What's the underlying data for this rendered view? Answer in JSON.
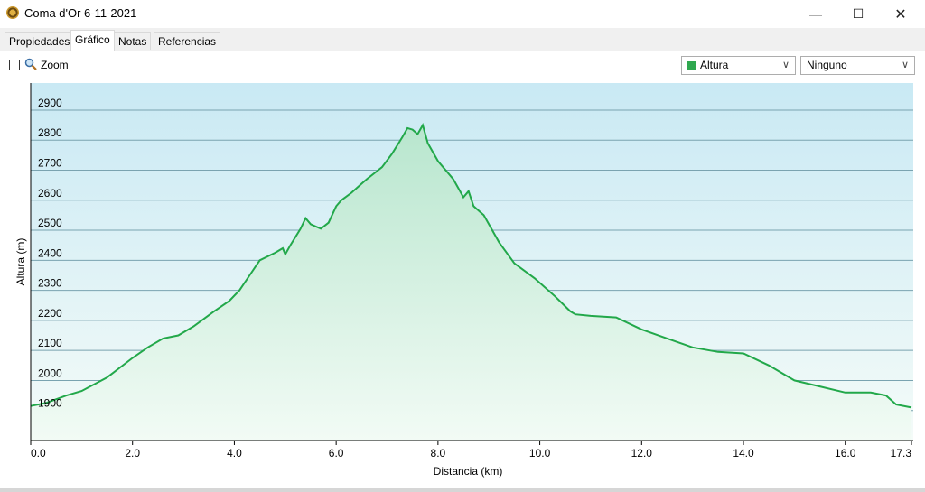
{
  "window": {
    "title": "Coma d'Or 6-11-2021",
    "minimize_glyph": "—",
    "maximize_glyph": "☐",
    "close_glyph": "✕",
    "icon": "app-icon"
  },
  "tabs": [
    {
      "label": "Propiedades",
      "active": false
    },
    {
      "label": "Gráfico",
      "active": true
    },
    {
      "label": "Notas",
      "active": false
    },
    {
      "label": "Referencias",
      "active": false
    }
  ],
  "toolbar": {
    "zoom_label": "Zoom",
    "zoom_checked": false,
    "series_select": {
      "value": "Altura",
      "color": "#2fa84f"
    },
    "secondary_select": {
      "value": "Ninguno"
    },
    "chevron_glyph": "∨"
  },
  "colors": {
    "line": "#22a84a",
    "fill_top": "#b8e6ce",
    "fill_bottom": "#f2fbf5",
    "bg_top": "#c9e9f4",
    "bg_bottom": "#f4fbf8",
    "grid": "#7aa3b0"
  },
  "chart_data": {
    "type": "area",
    "xlabel": "Distancia (km)",
    "ylabel": "Altura (m)",
    "xlim": [
      0,
      17.3
    ],
    "ylim": [
      1800,
      2990
    ],
    "x_ticks": [
      0,
      2,
      4,
      6,
      8,
      10,
      12,
      14,
      16,
      17.3
    ],
    "x_tick_labels": [
      "0.0",
      "2.0",
      "4.0",
      "6.0",
      "8.0",
      "10.0",
      "12.0",
      "14.0",
      "16.0",
      "17.3"
    ],
    "y_ticks": [
      1900,
      2000,
      2100,
      2200,
      2300,
      2400,
      2500,
      2600,
      2700,
      2800,
      2900
    ],
    "y_tick_labels": [
      "1900",
      "2000",
      "2100",
      "2200",
      "2300",
      "2400",
      "2500",
      "2600",
      "2700",
      "2800",
      "2900"
    ],
    "grid": true,
    "series": [
      {
        "x": [
          0,
          0.3,
          0.7,
          1.0,
          1.5,
          2.0,
          2.3,
          2.6,
          2.9,
          3.2,
          3.6,
          3.9,
          4.1,
          4.3,
          4.5,
          4.8,
          4.95,
          5.0,
          5.1,
          5.3,
          5.4,
          5.5,
          5.7,
          5.85,
          6.0,
          6.1,
          6.3,
          6.5,
          6.6,
          6.9,
          7.1,
          7.3,
          7.4,
          7.5,
          7.6,
          7.7,
          7.8,
          8.0,
          8.3,
          8.5,
          8.6,
          8.7,
          8.9,
          9.2,
          9.5,
          9.9,
          10.3,
          10.6,
          10.7,
          11.0,
          11.5,
          12.0,
          12.5,
          13.0,
          13.5,
          14.0,
          14.5,
          15.0,
          15.5,
          16.0,
          16.5,
          16.8,
          17.0,
          17.3
        ],
        "y": [
          1915,
          1925,
          1950,
          1965,
          2010,
          2075,
          2110,
          2140,
          2150,
          2180,
          2230,
          2265,
          2300,
          2350,
          2400,
          2425,
          2440,
          2420,
          2450,
          2505,
          2540,
          2520,
          2505,
          2525,
          2580,
          2600,
          2625,
          2655,
          2670,
          2710,
          2755,
          2810,
          2840,
          2835,
          2820,
          2850,
          2790,
          2730,
          2670,
          2610,
          2630,
          2580,
          2550,
          2460,
          2390,
          2340,
          2280,
          2230,
          2220,
          2215,
          2210,
          2170,
          2140,
          2110,
          2095,
          2090,
          2050,
          2000,
          1980,
          1960,
          1960,
          1950,
          1920,
          1910
        ]
      }
    ]
  }
}
